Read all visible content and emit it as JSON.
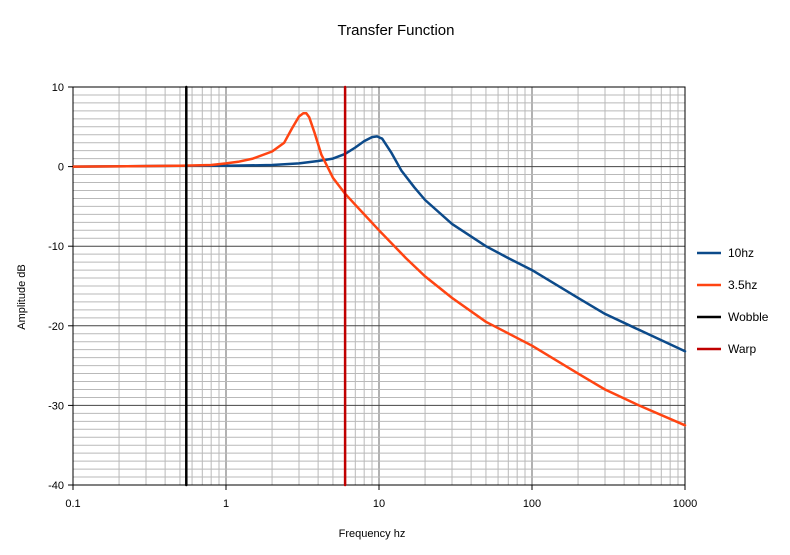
{
  "chart_data": {
    "type": "line",
    "title": "Transfer Function",
    "xlabel": "Frequency hz",
    "ylabel": "Amplitude dB",
    "x_scale": "log",
    "xlim": [
      0.1,
      1000
    ],
    "ylim": [
      -40,
      10
    ],
    "grid": true,
    "legend_position": "right",
    "x_ticks": [
      {
        "value": 0.1,
        "label": "0.1"
      },
      {
        "value": 1,
        "label": "1"
      },
      {
        "value": 10,
        "label": "10"
      },
      {
        "value": 100,
        "label": "100"
      },
      {
        "value": 1000,
        "label": "1000"
      }
    ],
    "y_ticks": [
      {
        "value": 10,
        "label": "10"
      },
      {
        "value": 0,
        "label": "0"
      },
      {
        "value": -10,
        "label": "-10"
      },
      {
        "value": -20,
        "label": "-20"
      },
      {
        "value": -30,
        "label": "-30"
      },
      {
        "value": -40,
        "label": "-40"
      }
    ],
    "series": [
      {
        "name": "10hz",
        "color": "#0c4a8a",
        "x": [
          0.1,
          0.5,
          1,
          2,
          3,
          4,
          5,
          6,
          7,
          8,
          9,
          9.7,
          10.5,
          12,
          14,
          17,
          20,
          30,
          50,
          70,
          100,
          200,
          300,
          500,
          1000
        ],
        "y": [
          0,
          0.1,
          0.1,
          0.2,
          0.4,
          0.7,
          1.0,
          1.6,
          2.4,
          3.2,
          3.7,
          3.8,
          3.5,
          1.8,
          -0.5,
          -2.6,
          -4.2,
          -7.2,
          -10.0,
          -11.5,
          -13.0,
          -16.5,
          -18.5,
          -20.5,
          -23.2
        ]
      },
      {
        "name": "3.5hz",
        "color": "#ff4412",
        "x": [
          0.1,
          0.5,
          0.8,
          1,
          1.2,
          1.5,
          2,
          2.4,
          2.7,
          3.0,
          3.2,
          3.35,
          3.5,
          3.8,
          4.2,
          5,
          6,
          7,
          8,
          10,
          15,
          20,
          30,
          50,
          100,
          200,
          300,
          500,
          1000
        ],
        "y": [
          0,
          0.1,
          0.2,
          0.4,
          0.6,
          1.0,
          1.9,
          3.0,
          4.8,
          6.3,
          6.7,
          6.7,
          6.2,
          4.2,
          1.5,
          -1.4,
          -3.4,
          -4.8,
          -6.0,
          -8.0,
          -11.5,
          -13.8,
          -16.5,
          -19.5,
          -22.5,
          -26.0,
          -28.0,
          -30.0,
          -32.5
        ]
      },
      {
        "name": "Wobble",
        "color": "#000000",
        "x": [
          0.55,
          0.55
        ],
        "y": [
          -40,
          10
        ]
      },
      {
        "name": "Warp",
        "color": "#c00000",
        "x": [
          6,
          6
        ],
        "y": [
          -40,
          10
        ]
      }
    ]
  }
}
